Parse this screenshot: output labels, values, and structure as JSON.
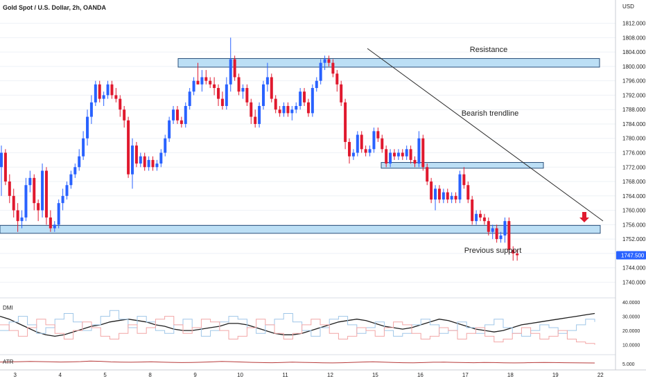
{
  "header": {
    "title": "Gold Spot / U.S. Dollar, 2h, OANDA",
    "currency": "USD"
  },
  "colors": {
    "up": "#2962ff",
    "down": "#e0192e",
    "zone_fill": "#bcdff5",
    "zone_stroke": "#2a4f7a",
    "trendline": "#2a2a2a",
    "grid": "#eef1f6",
    "dmi_main": "#1d1d1d",
    "dmi_plus": "#9fc6e8",
    "dmi_minus": "#f2a6a6",
    "atr": "#b73a3a",
    "arrow": "#e0192e",
    "price_tag": "#2962ff"
  },
  "chart_data": [
    {
      "type": "candlestick",
      "title": "Gold Spot / U.S. Dollar, 2h, OANDA",
      "ylabel": "USD",
      "ylim": [
        1737,
        1815
      ],
      "y_ticks": [
        "1740.000",
        "1744.000",
        "1748.000",
        "1752.000",
        "1756.000",
        "1760.000",
        "1764.000",
        "1768.000",
        "1772.000",
        "1776.000",
        "1780.000",
        "1784.000",
        "1788.000",
        "1792.000",
        "1796.000",
        "1800.000",
        "1804.000",
        "1808.000",
        "1812.000"
      ],
      "x_ticks": [
        {
          "label": "3",
          "bar": 3
        },
        {
          "label": "4",
          "bar": 14
        },
        {
          "label": "5",
          "bar": 25
        },
        {
          "label": "8",
          "bar": 36
        },
        {
          "label": "9",
          "bar": 47
        },
        {
          "label": "10",
          "bar": 58
        },
        {
          "label": "11",
          "bar": 69
        },
        {
          "label": "12",
          "bar": 80
        },
        {
          "label": "15",
          "bar": 91
        },
        {
          "label": "16",
          "bar": 102
        },
        {
          "label": "17",
          "bar": 113
        },
        {
          "label": "18",
          "bar": 124
        },
        {
          "label": "19",
          "bar": 135
        },
        {
          "label": "22",
          "bar": 146
        }
      ],
      "last_price": "1747.500",
      "ohlc": [
        [
          1772,
          1778,
          1764,
          1776
        ],
        [
          1776,
          1777,
          1767,
          1768
        ],
        [
          1768,
          1770,
          1762,
          1764
        ],
        [
          1764,
          1766,
          1758,
          1760
        ],
        [
          1760,
          1762,
          1754,
          1757
        ],
        [
          1757,
          1760,
          1755,
          1758
        ],
        [
          1758,
          1769,
          1757,
          1767
        ],
        [
          1767,
          1771,
          1765,
          1769
        ],
        [
          1769,
          1770,
          1760,
          1762
        ],
        [
          1762,
          1763,
          1757,
          1760
        ],
        [
          1760,
          1773,
          1758,
          1771
        ],
        [
          1771,
          1772,
          1756,
          1758
        ],
        [
          1758,
          1760,
          1754,
          1755
        ],
        [
          1755,
          1757,
          1754,
          1756
        ],
        [
          1756,
          1763,
          1755,
          1762
        ],
        [
          1762,
          1766,
          1760,
          1764
        ],
        [
          1764,
          1768,
          1763,
          1767
        ],
        [
          1767,
          1771,
          1766,
          1770
        ],
        [
          1770,
          1773,
          1769,
          1772
        ],
        [
          1772,
          1777,
          1771,
          1775
        ],
        [
          1775,
          1782,
          1774,
          1780
        ],
        [
          1780,
          1788,
          1778,
          1786
        ],
        [
          1786,
          1792,
          1784,
          1790
        ],
        [
          1790,
          1796,
          1789,
          1795
        ],
        [
          1795,
          1796,
          1790,
          1791
        ],
        [
          1791,
          1793,
          1789,
          1792
        ],
        [
          1792,
          1796,
          1791,
          1795
        ],
        [
          1795,
          1796,
          1791,
          1792
        ],
        [
          1792,
          1794,
          1790,
          1791
        ],
        [
          1791,
          1792,
          1786,
          1788
        ],
        [
          1788,
          1789,
          1783,
          1785
        ],
        [
          1785,
          1786,
          1769,
          1770
        ],
        [
          1770,
          1780,
          1766,
          1778
        ],
        [
          1778,
          1779,
          1772,
          1773
        ],
        [
          1773,
          1776,
          1772,
          1775
        ],
        [
          1775,
          1776,
          1771,
          1772
        ],
        [
          1772,
          1775,
          1771,
          1774
        ],
        [
          1774,
          1775,
          1771,
          1772
        ],
        [
          1772,
          1774,
          1771,
          1773
        ],
        [
          1773,
          1777,
          1772,
          1776
        ],
        [
          1776,
          1781,
          1775,
          1780
        ],
        [
          1780,
          1786,
          1779,
          1785
        ],
        [
          1785,
          1789,
          1784,
          1788
        ],
        [
          1788,
          1789,
          1784,
          1785
        ],
        [
          1785,
          1786,
          1783,
          1784
        ],
        [
          1784,
          1790,
          1783,
          1789
        ],
        [
          1789,
          1794,
          1788,
          1793
        ],
        [
          1793,
          1797,
          1792,
          1796
        ],
        [
          1796,
          1801,
          1795,
          1795
        ],
        [
          1795,
          1799,
          1793,
          1797
        ],
        [
          1797,
          1799,
          1795,
          1796
        ],
        [
          1796,
          1797,
          1794,
          1795
        ],
        [
          1795,
          1797,
          1792,
          1794
        ],
        [
          1794,
          1795,
          1789,
          1791
        ],
        [
          1791,
          1793,
          1788,
          1789
        ],
        [
          1789,
          1797,
          1788,
          1795
        ],
        [
          1795,
          1808,
          1793,
          1802
        ],
        [
          1802,
          1803,
          1796,
          1797
        ],
        [
          1797,
          1798,
          1792,
          1793
        ],
        [
          1793,
          1795,
          1791,
          1794
        ],
        [
          1794,
          1795,
          1789,
          1790
        ],
        [
          1790,
          1791,
          1784,
          1786
        ],
        [
          1786,
          1788,
          1783,
          1784
        ],
        [
          1784,
          1790,
          1783,
          1789
        ],
        [
          1789,
          1796,
          1788,
          1795
        ],
        [
          1795,
          1801,
          1793,
          1797
        ],
        [
          1797,
          1798,
          1790,
          1791
        ],
        [
          1791,
          1792,
          1787,
          1788
        ],
        [
          1788,
          1789,
          1786,
          1787
        ],
        [
          1787,
          1790,
          1786,
          1789
        ],
        [
          1789,
          1790,
          1786,
          1787
        ],
        [
          1787,
          1789,
          1785,
          1788
        ],
        [
          1788,
          1790,
          1787,
          1789
        ],
        [
          1789,
          1794,
          1788,
          1793
        ],
        [
          1793,
          1794,
          1789,
          1790
        ],
        [
          1790,
          1791,
          1786,
          1787
        ],
        [
          1787,
          1795,
          1786,
          1794
        ],
        [
          1794,
          1797,
          1793,
          1796
        ],
        [
          1796,
          1802,
          1795,
          1801
        ],
        [
          1801,
          1803,
          1799,
          1802
        ],
        [
          1802,
          1803,
          1800,
          1801
        ],
        [
          1801,
          1802,
          1797,
          1798
        ],
        [
          1798,
          1799,
          1793,
          1795
        ],
        [
          1795,
          1796,
          1789,
          1790
        ],
        [
          1790,
          1791,
          1777,
          1779
        ],
        [
          1779,
          1780,
          1773,
          1775
        ],
        [
          1775,
          1777,
          1774,
          1776
        ],
        [
          1776,
          1782,
          1775,
          1781
        ],
        [
          1781,
          1782,
          1776,
          1777
        ],
        [
          1777,
          1778,
          1775,
          1776
        ],
        [
          1776,
          1778,
          1775,
          1777
        ],
        [
          1777,
          1783,
          1776,
          1782
        ],
        [
          1782,
          1783,
          1779,
          1780
        ],
        [
          1780,
          1781,
          1776,
          1777
        ],
        [
          1777,
          1778,
          1772,
          1773
        ],
        [
          1773,
          1777,
          1772,
          1776
        ],
        [
          1776,
          1777,
          1774,
          1775
        ],
        [
          1775,
          1777,
          1774,
          1776
        ],
        [
          1776,
          1777,
          1774,
          1775
        ],
        [
          1775,
          1778,
          1774,
          1777
        ],
        [
          1777,
          1778,
          1773,
          1774
        ],
        [
          1774,
          1775,
          1772,
          1773
        ],
        [
          1773,
          1782,
          1772,
          1780
        ],
        [
          1780,
          1781,
          1771,
          1772
        ],
        [
          1772,
          1773,
          1767,
          1768
        ],
        [
          1768,
          1769,
          1762,
          1763
        ],
        [
          1763,
          1767,
          1760,
          1766
        ],
        [
          1766,
          1767,
          1762,
          1763
        ],
        [
          1763,
          1766,
          1762,
          1765
        ],
        [
          1765,
          1766,
          1762,
          1763
        ],
        [
          1763,
          1765,
          1762,
          1764
        ],
        [
          1764,
          1765,
          1762,
          1763
        ],
        [
          1763,
          1771,
          1762,
          1770
        ],
        [
          1770,
          1772,
          1766,
          1767
        ],
        [
          1767,
          1768,
          1762,
          1763
        ],
        [
          1763,
          1764,
          1756,
          1757
        ],
        [
          1757,
          1760,
          1756,
          1759
        ],
        [
          1759,
          1760,
          1757,
          1758
        ],
        [
          1758,
          1759,
          1756,
          1757
        ],
        [
          1757,
          1758,
          1753,
          1754
        ],
        [
          1754,
          1756,
          1752,
          1755
        ],
        [
          1755,
          1756,
          1751,
          1752
        ],
        [
          1752,
          1754,
          1751,
          1753
        ],
        [
          1753,
          1758,
          1751,
          1757
        ],
        [
          1757,
          1758,
          1748,
          1749
        ],
        [
          1749,
          1750,
          1746,
          1748
        ],
        [
          1748,
          1749,
          1746,
          1747.5
        ]
      ],
      "annotations": [
        {
          "text": "Resistance",
          "kind": "zone",
          "from": 1799.8,
          "to": 1802.2
        },
        {
          "text": "Bearish trendline",
          "kind": "trendline"
        },
        {
          "kind": "zone",
          "from": 1771.7,
          "to": 1773.3
        },
        {
          "text": "Previous support",
          "kind": "zone",
          "from": 1753.6,
          "to": 1755.8
        }
      ]
    },
    {
      "type": "line",
      "title": "DMI",
      "ylim": [
        5,
        40
      ],
      "y_ticks": [
        "10.0000",
        "20.0000",
        "30.0000",
        "40.0000"
      ],
      "series": [
        {
          "values": [
            30,
            28,
            25,
            22,
            19,
            17,
            16,
            17,
            19,
            21,
            23,
            24,
            26,
            27,
            28,
            27,
            26,
            24,
            23,
            21,
            20,
            20,
            21,
            22,
            23,
            25,
            25,
            24,
            22,
            20,
            18,
            17,
            17,
            18,
            20,
            22,
            24,
            26,
            27,
            28,
            27,
            25,
            23,
            22,
            21,
            22,
            24,
            26,
            28,
            27,
            25,
            23,
            21,
            20,
            19,
            20,
            22,
            24,
            25,
            26,
            27,
            28,
            29,
            30,
            31,
            32
          ]
        },
        {
          "values": [
            20,
            26,
            30,
            24,
            18,
            22,
            28,
            32,
            26,
            20,
            24,
            30,
            34,
            28,
            22,
            30,
            26,
            20,
            18,
            24,
            28,
            22,
            16,
            20,
            26,
            30,
            28,
            22,
            18,
            24,
            28,
            32,
            26,
            20,
            16,
            22,
            28,
            30,
            24,
            18,
            22,
            26,
            20,
            16,
            18,
            24,
            28,
            24,
            18,
            20,
            26,
            22,
            18,
            24,
            28,
            22,
            18,
            16,
            20,
            24,
            22,
            18,
            20,
            24,
            28,
            26
          ]
        },
        {
          "values": [
            24,
            20,
            16,
            22,
            28,
            24,
            18,
            14,
            20,
            26,
            22,
            16,
            14,
            18,
            24,
            18,
            22,
            28,
            30,
            24,
            18,
            22,
            28,
            26,
            20,
            14,
            16,
            22,
            28,
            24,
            18,
            14,
            18,
            24,
            28,
            24,
            18,
            14,
            16,
            22,
            20,
            16,
            22,
            26,
            24,
            18,
            14,
            16,
            22,
            20,
            14,
            18,
            22,
            16,
            12,
            14,
            18,
            22,
            18,
            14,
            16,
            20,
            14,
            12,
            11,
            10
          ]
        }
      ]
    },
    {
      "type": "line",
      "title": "ATR",
      "y_ticks": [
        "5.000"
      ],
      "series": [
        {
          "values": [
            6.5,
            6.6,
            6.8,
            7.0,
            6.9,
            6.7,
            6.5,
            6.6,
            6.9,
            7.4,
            7.1,
            6.6,
            6.4,
            6.3,
            6.5,
            6.7,
            6.4,
            6.2,
            6.0,
            6.1,
            6.3,
            6.6,
            7.0,
            6.8,
            6.5,
            6.2,
            6.0,
            5.9,
            6.1,
            6.4,
            6.2,
            6.0,
            5.8,
            5.7,
            5.9,
            6.2,
            6.5,
            6.7,
            6.4,
            6.1,
            5.9,
            5.8,
            6.0,
            6.3,
            6.4,
            6.2,
            6.0,
            5.9,
            6.1,
            6.0,
            5.8,
            5.7,
            5.8,
            6.0,
            6.1,
            6.0,
            5.9,
            5.8,
            5.7,
            5.6
          ]
        }
      ]
    }
  ]
}
